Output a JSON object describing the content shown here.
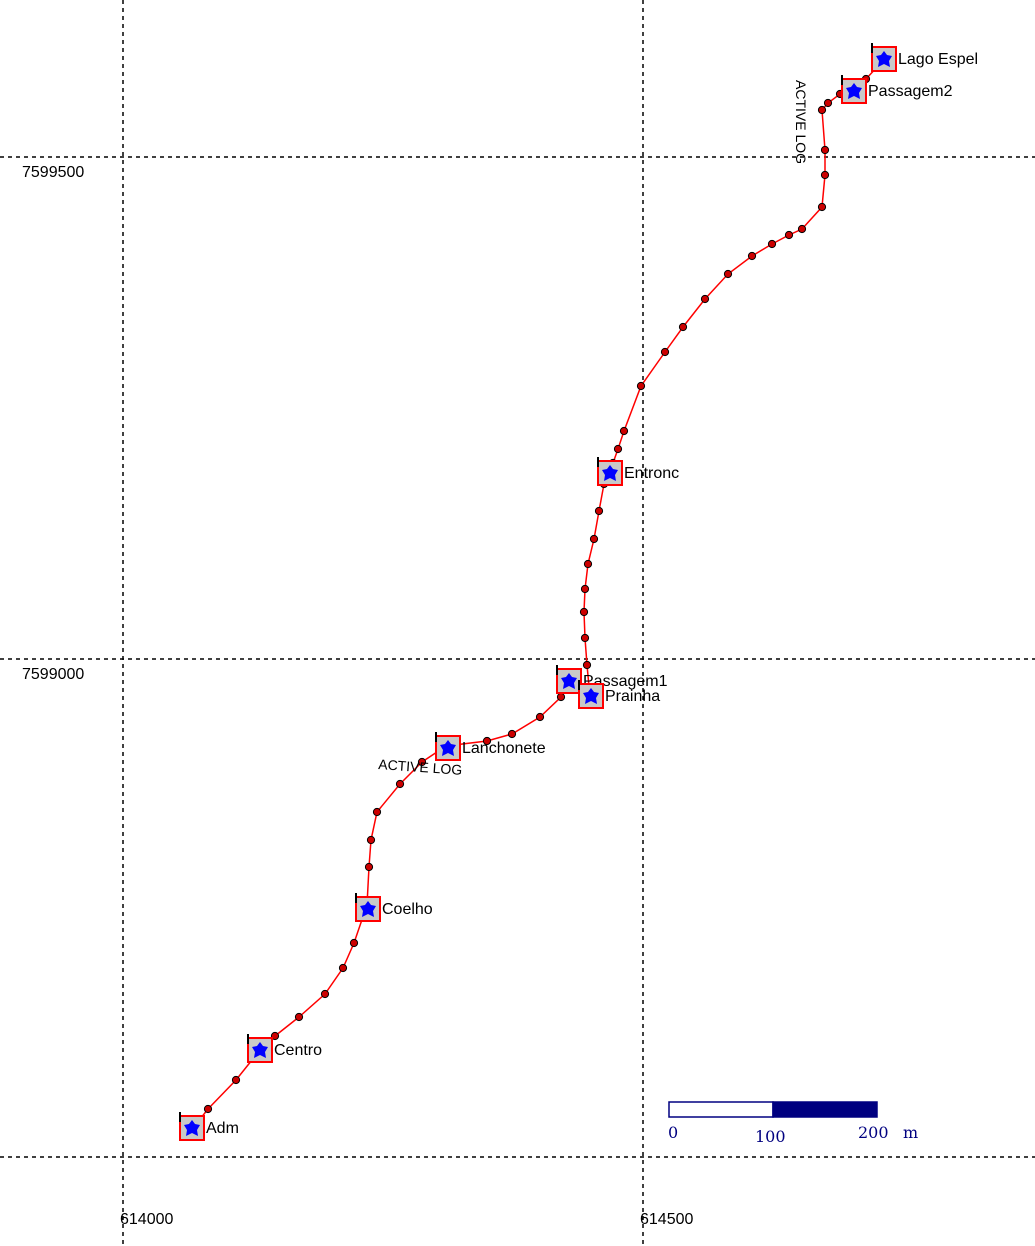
{
  "map": {
    "grid": {
      "x_values": [
        "614000",
        "614500"
      ],
      "y_values": [
        "7599500",
        "7599000"
      ]
    },
    "track": {
      "label_north": "ACTIVE LOG",
      "label_south": "ACTIVE LOG",
      "color": "#ff0000",
      "point_color": "#cc0000"
    },
    "waypoints": [
      {
        "name": "Lago Espel"
      },
      {
        "name": "Passagem2"
      },
      {
        "name": "Entronc"
      },
      {
        "name": "Passagem1"
      },
      {
        "name": "Prainha"
      },
      {
        "name": "Lanchonete"
      },
      {
        "name": "Coelho"
      },
      {
        "name": "Centro"
      },
      {
        "name": "Adm"
      }
    ],
    "scale_bar": {
      "labels": [
        "0",
        "100",
        "200"
      ],
      "unit": "m",
      "color": "#000080"
    },
    "waypoint_colors": {
      "box": "#ff0000",
      "fill": "#c8c8c8",
      "icon": "#0000ff"
    }
  }
}
